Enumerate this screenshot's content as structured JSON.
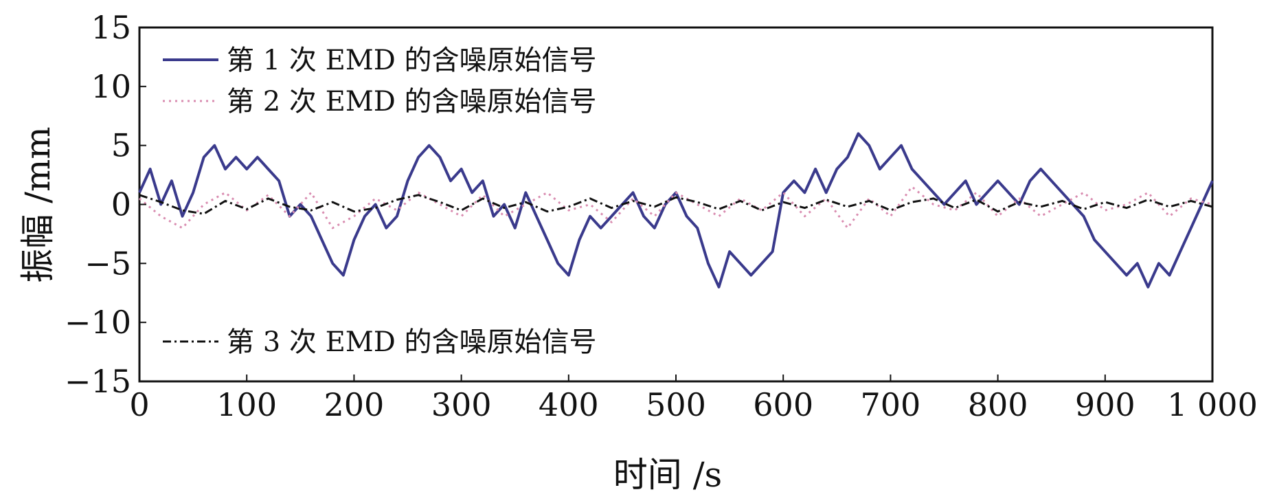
{
  "chart_data": {
    "type": "line",
    "xlabel": "时间 /s",
    "ylabel": "振幅 /mm",
    "xlim": [
      0,
      1000
    ],
    "ylim": [
      -15,
      15
    ],
    "xticks": [
      0,
      100,
      200,
      300,
      400,
      500,
      600,
      700,
      800,
      900,
      1000
    ],
    "xtick_labels": [
      "0",
      "100",
      "200",
      "300",
      "400",
      "500",
      "600",
      "700",
      "800",
      "900",
      "1 000"
    ],
    "yticks": [
      15,
      10,
      5,
      0,
      -5,
      -10,
      -15
    ],
    "ytick_labels": [
      "15",
      "10",
      "5",
      "0",
      "−5",
      "−10",
      "−15"
    ],
    "grid": false,
    "series": [
      {
        "name": "第 1 次 EMD 的含噪原始信号",
        "color": "#3a3a8c",
        "style": "solid",
        "x": [
          0,
          10,
          20,
          30,
          40,
          50,
          60,
          70,
          80,
          90,
          100,
          110,
          120,
          130,
          140,
          150,
          160,
          170,
          180,
          190,
          200,
          210,
          220,
          230,
          240,
          250,
          260,
          270,
          280,
          290,
          300,
          310,
          320,
          330,
          340,
          350,
          360,
          370,
          380,
          390,
          400,
          410,
          420,
          430,
          440,
          450,
          460,
          470,
          480,
          490,
          500,
          510,
          520,
          530,
          540,
          550,
          560,
          570,
          580,
          590,
          600,
          610,
          620,
          630,
          640,
          650,
          660,
          670,
          680,
          690,
          700,
          710,
          720,
          730,
          740,
          750,
          760,
          770,
          780,
          790,
          800,
          810,
          820,
          830,
          840,
          850,
          860,
          870,
          880,
          890,
          900,
          910,
          920,
          930,
          940,
          950,
          960,
          970,
          980,
          990,
          1000
        ],
        "values": [
          1,
          3,
          0,
          2,
          -1,
          1,
          4,
          5,
          3,
          4,
          3,
          4,
          3,
          2,
          -1,
          0,
          -1,
          -3,
          -5,
          -6,
          -3,
          -1,
          0,
          -2,
          -1,
          2,
          4,
          5,
          4,
          2,
          3,
          1,
          2,
          -1,
          0,
          -2,
          1,
          -1,
          -3,
          -5,
          -6,
          -3,
          -1,
          -2,
          -1,
          0,
          1,
          -1,
          -2,
          0,
          1,
          -1,
          -2,
          -5,
          -7,
          -4,
          -5,
          -6,
          -5,
          -4,
          1,
          2,
          1,
          3,
          1,
          3,
          4,
          6,
          5,
          3,
          4,
          5,
          3,
          2,
          1,
          0,
          1,
          2,
          0,
          1,
          2,
          1,
          0,
          2,
          3,
          2,
          1,
          0,
          -1,
          -3,
          -4,
          -5,
          -6,
          -5,
          -7,
          -5,
          -6,
          -4,
          -2,
          0,
          2
        ]
      },
      {
        "name": "第 2 次 EMD 的含噪原始信号",
        "color": "#d98cb0",
        "style": "dotted",
        "x": [
          0,
          20,
          40,
          60,
          80,
          100,
          120,
          140,
          160,
          180,
          200,
          220,
          240,
          260,
          280,
          300,
          320,
          340,
          360,
          380,
          400,
          420,
          440,
          460,
          480,
          500,
          520,
          540,
          560,
          580,
          600,
          620,
          640,
          660,
          680,
          700,
          720,
          740,
          760,
          780,
          800,
          820,
          840,
          860,
          880,
          900,
          920,
          940,
          960,
          980,
          1000
        ],
        "values": [
          0.5,
          -1,
          -2,
          0,
          1,
          -0.5,
          0.8,
          -1,
          1,
          -2,
          -1,
          0.5,
          -0.5,
          1,
          0,
          -1,
          0.8,
          -1,
          0,
          1,
          -0.5,
          0,
          -1.5,
          0.5,
          -1,
          1,
          0,
          -1,
          0.5,
          -0.5,
          1,
          -1,
          0.5,
          -2,
          0.5,
          -1,
          1.5,
          0,
          -0.5,
          1,
          -1,
          0.5,
          -1,
          0,
          1,
          -0.5,
          0,
          1,
          -1,
          0.5,
          0
        ]
      },
      {
        "name": "第 3 次 EMD 的含噪原始信号",
        "color": "#111111",
        "style": "dashdot",
        "x": [
          0,
          20,
          40,
          60,
          80,
          100,
          120,
          140,
          160,
          180,
          200,
          220,
          240,
          260,
          280,
          300,
          320,
          340,
          360,
          380,
          400,
          420,
          440,
          460,
          480,
          500,
          520,
          540,
          560,
          580,
          600,
          620,
          640,
          660,
          680,
          700,
          720,
          740,
          760,
          780,
          800,
          820,
          840,
          860,
          880,
          900,
          920,
          940,
          960,
          980,
          1000
        ],
        "values": [
          0.8,
          0.2,
          -0.5,
          -0.8,
          0.3,
          -0.4,
          0.5,
          -0.2,
          -0.5,
          0.2,
          -0.6,
          -0.3,
          0.4,
          0.8,
          0.2,
          -0.5,
          0.5,
          -0.3,
          0.2,
          -0.6,
          -0.2,
          0.5,
          -0.3,
          0.3,
          -0.2,
          0.6,
          0.2,
          -0.4,
          0.3,
          -0.5,
          0.2,
          -0.3,
          0.4,
          -0.2,
          0.3,
          -0.5,
          0.2,
          0.5,
          -0.3,
          0.4,
          -0.6,
          0.2,
          -0.2,
          0.3,
          -0.4,
          0.2,
          -0.3,
          0.4,
          -0.2,
          0.3,
          -0.2
        ]
      }
    ]
  }
}
